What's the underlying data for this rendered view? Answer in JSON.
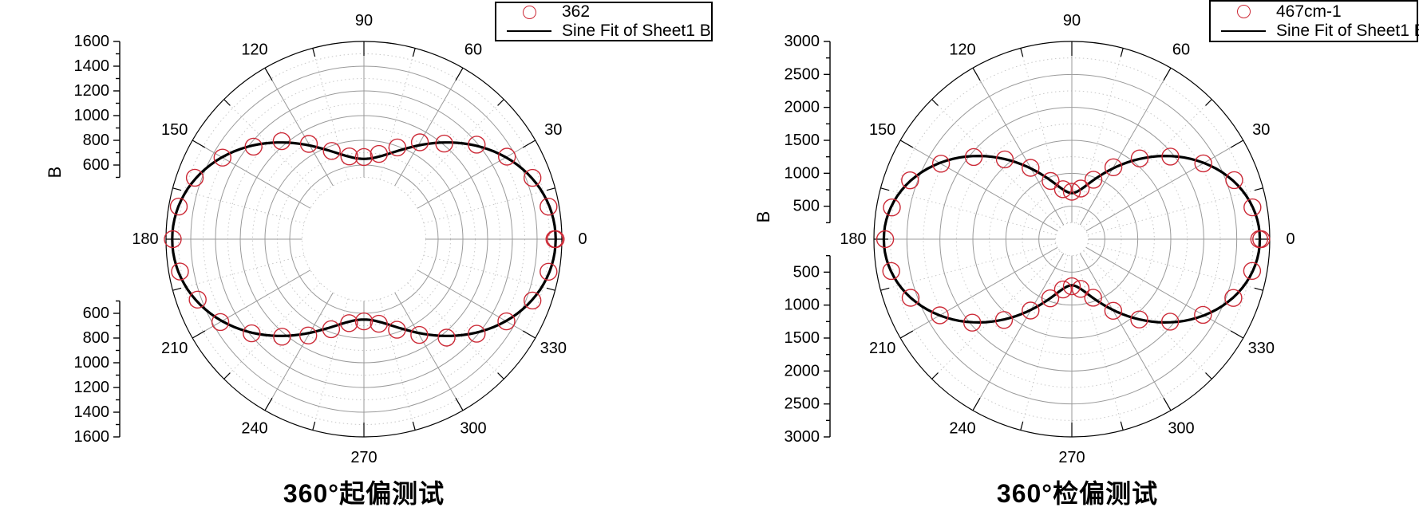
{
  "page": {
    "background": "#ffffff"
  },
  "colors": {
    "data_symbol": "#cc2936",
    "fit_line": "#000000",
    "major_grid": "#9a9a9a",
    "minor_grid": "#c8c8c8",
    "axis": "#000000"
  },
  "chart_data": [
    {
      "type": "scatter",
      "polar": true,
      "title": "360°起偏测试",
      "radial_axis_label": "B",
      "radial_range": [
        0,
        1600
      ],
      "radial_major_step": 200,
      "radial_minor_step": 100,
      "radial_grid_start": 500,
      "radial_tick_labels": [
        600,
        800,
        1000,
        1200,
        1400,
        1600
      ],
      "angular_tick_labels": [
        0,
        30,
        60,
        90,
        120,
        150,
        180,
        210,
        240,
        270,
        300,
        330
      ],
      "legend": [
        {
          "marker": "circle",
          "label": "362"
        },
        {
          "marker": "line",
          "label": "Sine Fit of Sheet1 B"
        }
      ],
      "series": [
        {
          "name": "362",
          "type": "scatter",
          "angles_deg": [
            0,
            10,
            20,
            30,
            40,
            50,
            60,
            70,
            80,
            90,
            100,
            110,
            120,
            130,
            140,
            150,
            160,
            170,
            180,
            190,
            200,
            210,
            220,
            230,
            240,
            250,
            260,
            270,
            280,
            290,
            300,
            310,
            320,
            330,
            340,
            350,
            360
          ],
          "values": [
            1540,
            1515,
            1450,
            1335,
            1190,
            1010,
            905,
            790,
            700,
            665,
            680,
            760,
            890,
            1035,
            1165,
            1320,
            1455,
            1520,
            1545,
            1510,
            1430,
            1340,
            1185,
            1030,
            900,
            775,
            690,
            665,
            695,
            780,
            895,
            1040,
            1190,
            1330,
            1450,
            1515,
            1550
          ]
        },
        {
          "name": "Sine Fit of Sheet1 B",
          "type": "line",
          "fit_model": {
            "formula": "r(theta) = y0 + A*cos(theta)^2",
            "y0": 650,
            "A": 900
          }
        }
      ]
    },
    {
      "type": "scatter",
      "polar": true,
      "title": "360°检偏测试",
      "radial_axis_label": "B",
      "radial_range": [
        0,
        3000
      ],
      "radial_major_step": 500,
      "radial_minor_step": 250,
      "radial_grid_start": 250,
      "radial_tick_labels": [
        500,
        1000,
        1500,
        2000,
        2500,
        3000
      ],
      "angular_tick_labels": [
        0,
        30,
        60,
        90,
        120,
        150,
        180,
        210,
        240,
        270,
        300,
        330
      ],
      "legend": [
        {
          "marker": "circle",
          "label": "467cm-1"
        },
        {
          "marker": "line",
          "label": "Sine Fit of Sheet1 B"
        }
      ],
      "series": [
        {
          "name": "467cm-1",
          "type": "scatter",
          "angles_deg": [
            0,
            10,
            20,
            30,
            40,
            50,
            60,
            70,
            80,
            90,
            100,
            110,
            120,
            130,
            140,
            150,
            160,
            170,
            180,
            190,
            200,
            210,
            220,
            230,
            240,
            250,
            260,
            270,
            280,
            290,
            300,
            310,
            320,
            330,
            340,
            350,
            360
          ],
          "values": [
            2840,
            2780,
            2620,
            2300,
            1950,
            1600,
            1260,
            960,
            780,
            720,
            770,
            940,
            1250,
            1580,
            1940,
            2290,
            2610,
            2770,
            2830,
            2780,
            2600,
            2310,
            1970,
            1600,
            1250,
            955,
            775,
            715,
            765,
            945,
            1255,
            1590,
            1945,
            2295,
            2605,
            2775,
            2870
          ]
        },
        {
          "name": "Sine Fit of Sheet1 B",
          "type": "line",
          "fit_model": {
            "formula": "r(theta) = y0 + A*cos(theta)^2",
            "y0": 700,
            "A": 2150
          }
        }
      ]
    }
  ]
}
